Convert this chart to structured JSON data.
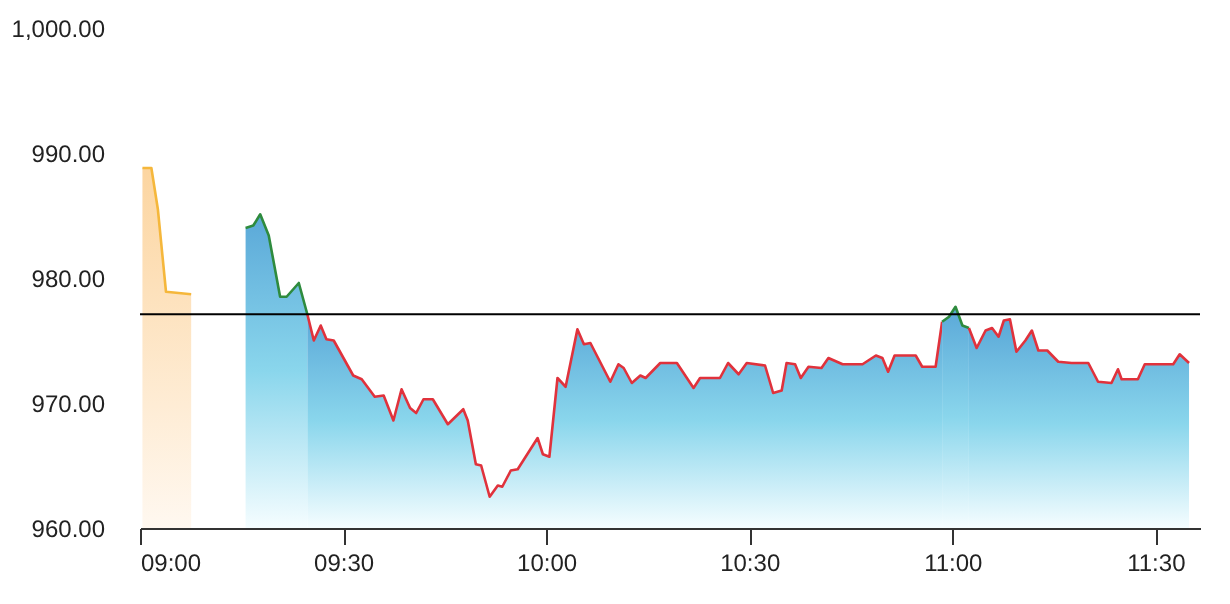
{
  "chart_data": {
    "type": "area",
    "xlim": [
      9.0,
      11.61
    ],
    "xticks": [
      {
        "value": 9,
        "label": "09:00"
      },
      {
        "value": 9.5,
        "label": "09:30"
      },
      {
        "value": 10,
        "label": "10:00"
      },
      {
        "value": 10.5,
        "label": "10:30"
      },
      {
        "value": 11,
        "label": "11:00"
      },
      {
        "value": 11.5,
        "label": "11:30"
      }
    ],
    "ylim": [
      960,
      1000
    ],
    "yticks": [
      {
        "value": 960,
        "label": "960.00"
      },
      {
        "value": 970,
        "label": "970.00"
      },
      {
        "value": 980,
        "label": "980.00"
      },
      {
        "value": 990,
        "label": "990.00"
      },
      {
        "value": 1000,
        "label": "1,000.00"
      }
    ],
    "grid": false,
    "ref_lines": [
      {
        "axis": "y",
        "value": 977.1,
        "color": "#000000"
      }
    ],
    "series": [
      {
        "color": "#f5b73b",
        "x": [
          9.006,
          9.028,
          9.044,
          9.064,
          9.126
        ],
        "values": [
          988.8,
          988.8,
          985.5,
          978.9,
          978.7
        ]
      },
      {
        "color": "#2e8b3e",
        "x": [
          9.26,
          9.279,
          9.296,
          9.317,
          9.345,
          9.361,
          9.391,
          9.412
        ],
        "values": [
          984.0,
          984.2,
          985.1,
          983.4,
          978.5,
          978.5,
          979.6,
          977.1
        ]
      },
      {
        "color": "#e0323c",
        "x": [
          9.412,
          9.428,
          9.445,
          9.459,
          9.477,
          9.525,
          9.546,
          9.578,
          9.6,
          9.624,
          9.644,
          9.665,
          9.68,
          9.698,
          9.721,
          9.758,
          9.796,
          9.807,
          9.827,
          9.84,
          9.861,
          9.881,
          9.892,
          9.913,
          9.93,
          9.979,
          9.992,
          10.008,
          10.028,
          10.048,
          10.077,
          10.093,
          10.109,
          10.158,
          10.178,
          10.191,
          10.211,
          10.232,
          10.245,
          10.281,
          10.322,
          10.363,
          10.379,
          10.428,
          10.448,
          10.474,
          10.494,
          10.539,
          10.559,
          10.58,
          10.592,
          10.613,
          10.627,
          10.646,
          10.678,
          10.695,
          10.73,
          10.779,
          10.812,
          10.828,
          10.842,
          10.858,
          10.91,
          10.926,
          10.959,
          10.975
        ],
        "values": [
          977.1,
          975.0,
          976.2,
          975.1,
          975.0,
          972.2,
          971.9,
          970.5,
          970.6,
          968.6,
          971.1,
          969.6,
          969.2,
          970.3,
          970.3,
          968.3,
          969.5,
          968.6,
          965.1,
          965.0,
          962.5,
          963.4,
          963.3,
          964.6,
          964.7,
          967.2,
          965.9,
          965.7,
          972.0,
          971.3,
          975.9,
          974.7,
          974.8,
          971.7,
          973.1,
          972.8,
          971.6,
          972.2,
          972.0,
          973.2,
          973.2,
          971.2,
          972.0,
          972.0,
          973.2,
          972.3,
          973.2,
          973.0,
          970.8,
          971.0,
          973.2,
          973.1,
          972.0,
          972.9,
          972.8,
          973.6,
          973.1,
          973.1,
          973.8,
          973.6,
          972.5,
          973.8,
          973.8,
          972.9,
          972.9,
          976.5
        ]
      },
      {
        "color": "#2e8b3e",
        "x": [
          10.975,
          10.992,
          11.008,
          11.025,
          11.041
        ],
        "values": [
          976.5,
          976.9,
          977.7,
          976.2,
          976.0
        ]
      },
      {
        "color": "#e0323c",
        "x": [
          11.041,
          11.06,
          11.082,
          11.098,
          11.114,
          11.127,
          11.142,
          11.158,
          11.18,
          11.196,
          11.212,
          11.234,
          11.261,
          11.294,
          11.335,
          11.359,
          11.392,
          11.408,
          11.417,
          11.457,
          11.474,
          11.544,
          11.56,
          11.583
        ],
        "values": [
          976.0,
          974.4,
          975.8,
          976.0,
          975.3,
          976.6,
          976.7,
          974.1,
          975.0,
          975.8,
          974.2,
          974.2,
          973.3,
          973.2,
          973.2,
          971.7,
          971.6,
          972.7,
          971.9,
          971.9,
          973.1,
          973.1,
          973.9,
          973.2
        ]
      }
    ]
  }
}
